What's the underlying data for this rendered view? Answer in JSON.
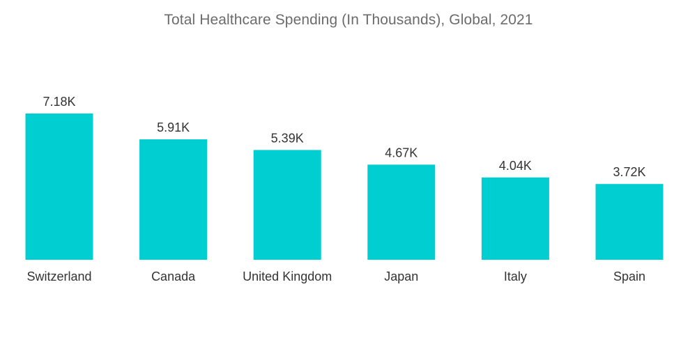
{
  "chart_data": {
    "type": "bar",
    "title": "Total Healthcare Spending (In Thousands), Global, 2021",
    "categories": [
      "Switzerland",
      "Canada",
      "United Kingdom",
      "Japan",
      "Italy",
      "Spain"
    ],
    "values": [
      7.18,
      5.91,
      5.39,
      4.67,
      4.04,
      3.72
    ],
    "value_labels": [
      "7.18K",
      "5.91K",
      "5.39K",
      "4.67K",
      "4.04K",
      "3.72K"
    ],
    "xlabel": "",
    "ylabel": "",
    "ylim": [
      0,
      7.18
    ],
    "grid": false,
    "legend": "none",
    "colors": {
      "bar": "#00ced1",
      "text": "#333333",
      "title": "#6b6b6b"
    }
  }
}
